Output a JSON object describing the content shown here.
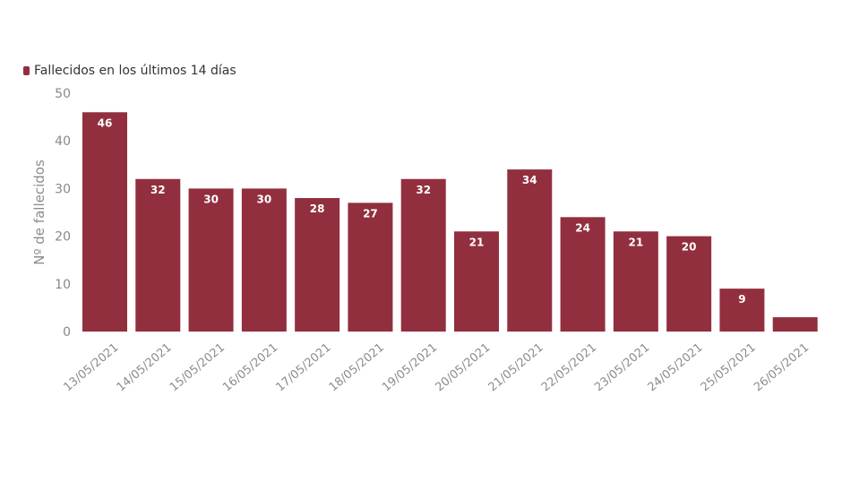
{
  "legend": {
    "label": "Fallecidos en los últimos 14 días"
  },
  "colors": {
    "bar": "#922f3e",
    "text": "#333333",
    "axis": "#8c8c8c"
  },
  "chart_data": {
    "type": "bar",
    "categories": [
      "13/05/2021",
      "14/05/2021",
      "15/05/2021",
      "16/05/2021",
      "17/05/2021",
      "18/05/2021",
      "19/05/2021",
      "20/05/2021",
      "21/05/2021",
      "22/05/2021",
      "23/05/2021",
      "24/05/2021",
      "25/05/2021",
      "26/05/2021"
    ],
    "series": [
      {
        "name": "Fallecidos en los últimos 14 días",
        "values": [
          46,
          32,
          30,
          30,
          28,
          27,
          32,
          21,
          34,
          24,
          21,
          20,
          9,
          3
        ],
        "data_labels": [
          "46",
          "32",
          "30",
          "30",
          "28",
          "27",
          "32",
          "21",
          "34",
          "24",
          "21",
          "20",
          "9",
          ""
        ]
      }
    ],
    "ylabel": "Nº de fallecidos",
    "xlabel": "",
    "ylim": [
      0,
      50
    ],
    "yticks": [
      0,
      10,
      20,
      30,
      40,
      50
    ],
    "grid": false,
    "legend_position": "top-left"
  }
}
